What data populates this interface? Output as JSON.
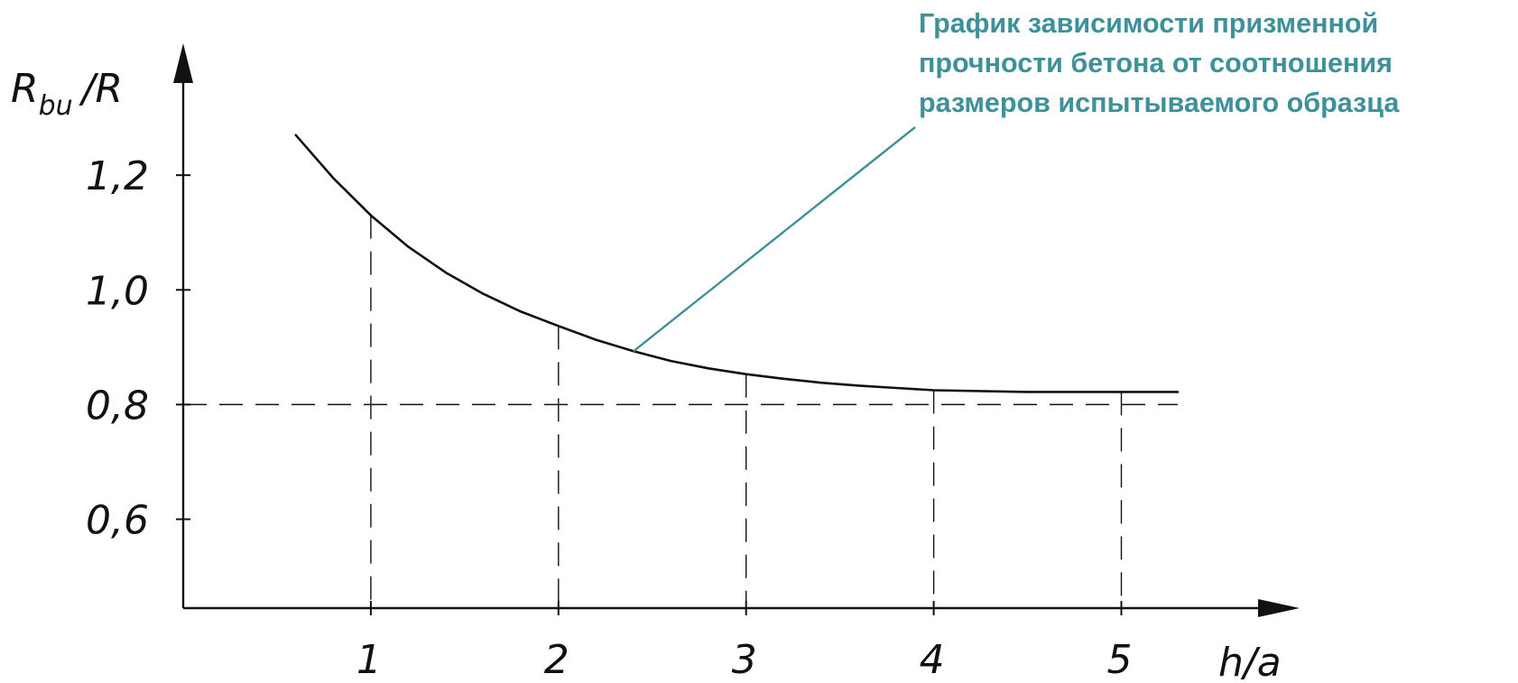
{
  "chart_data": {
    "type": "line",
    "annotation": {
      "lines": [
        "График зависимости призменной",
        "прочности бетона от соотношения",
        "размеров испытываемого образца"
      ],
      "color": "#3e9198",
      "points_to": {
        "x": 2.4,
        "y": 0.88
      }
    },
    "x": {
      "label_main": "h/a",
      "ticks": [
        1,
        2,
        3,
        4,
        5
      ],
      "tick_labels": [
        "1",
        "2",
        "3",
        "4",
        "5"
      ],
      "range": [
        0,
        5.95
      ]
    },
    "y": {
      "label_main": "R",
      "label_sub": "bu",
      "label_rest": "/R",
      "ticks": [
        0.6,
        0.8,
        1.0,
        1.2
      ],
      "tick_labels": [
        "0,6",
        "0,8",
        "1,0",
        "1,2"
      ],
      "range": [
        0.445,
        1.43
      ]
    },
    "series": [
      {
        "x": [
          0.6,
          0.8,
          1.0,
          1.2,
          1.4,
          1.6,
          1.8,
          2.0,
          2.2,
          2.4,
          2.6,
          2.8,
          3.0,
          3.2,
          3.4,
          3.6,
          3.8,
          4.0,
          4.5,
          5.0,
          5.3
        ],
        "y": [
          1.27,
          1.195,
          1.13,
          1.075,
          1.03,
          0.993,
          0.962,
          0.937,
          0.913,
          0.893,
          0.876,
          0.863,
          0.853,
          0.845,
          0.838,
          0.833,
          0.829,
          0.825,
          0.822,
          0.822,
          0.822
        ]
      }
    ],
    "reference_line": {
      "y": 0.8,
      "style": "dashed"
    },
    "dashed_drop_lines_at_x": [
      1,
      2,
      3,
      4,
      5
    ],
    "grid": false,
    "colors": {
      "curve": "#111111",
      "axes": "#111111",
      "annotation": "#3e9198"
    }
  }
}
